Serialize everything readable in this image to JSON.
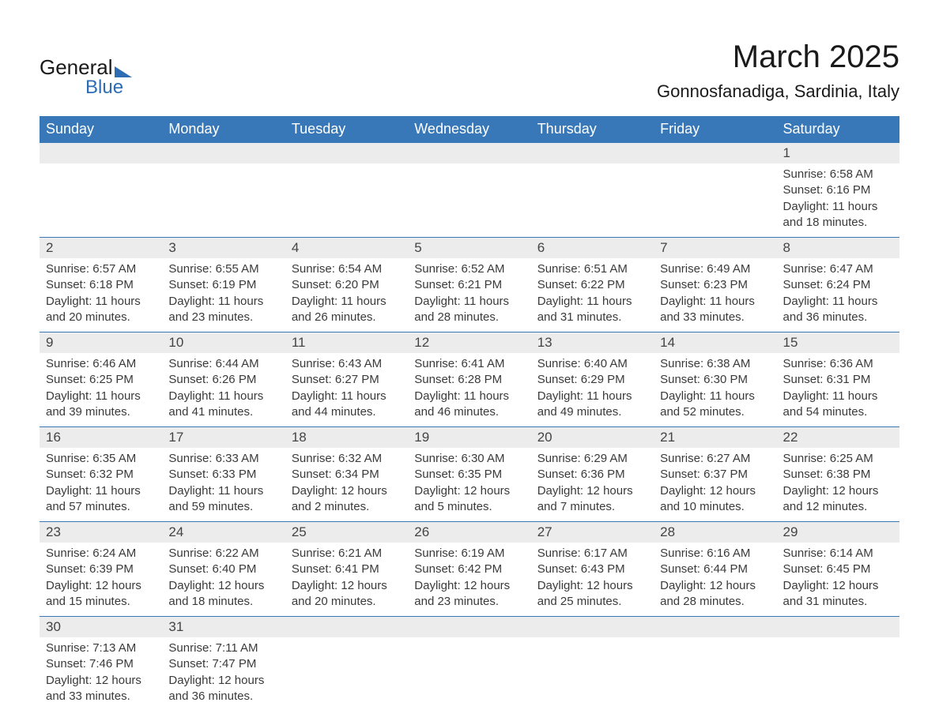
{
  "logo": {
    "general": "General",
    "blue": "Blue"
  },
  "title": "March 2025",
  "location": "Gonnosfanadiga, Sardinia, Italy",
  "dow": [
    "Sunday",
    "Monday",
    "Tuesday",
    "Wednesday",
    "Thursday",
    "Friday",
    "Saturday"
  ],
  "styling": {
    "header_bg": "#3878b8",
    "header_fg": "#ffffff",
    "stripe_bg": "#ececec",
    "border_color": "#3878b8",
    "body_bg": "#ffffff",
    "text_color": "#3a3a3a",
    "title_fontsize": 40,
    "location_fontsize": 22,
    "dow_fontsize": 18,
    "daynum_fontsize": 17,
    "data_fontsize": 15,
    "columns": 7
  },
  "weeks": [
    [
      null,
      null,
      null,
      null,
      null,
      null,
      {
        "n": "1",
        "sr": "Sunrise: 6:58 AM",
        "ss": "Sunset: 6:16 PM",
        "d1": "Daylight: 11 hours",
        "d2": "and 18 minutes."
      }
    ],
    [
      {
        "n": "2",
        "sr": "Sunrise: 6:57 AM",
        "ss": "Sunset: 6:18 PM",
        "d1": "Daylight: 11 hours",
        "d2": "and 20 minutes."
      },
      {
        "n": "3",
        "sr": "Sunrise: 6:55 AM",
        "ss": "Sunset: 6:19 PM",
        "d1": "Daylight: 11 hours",
        "d2": "and 23 minutes."
      },
      {
        "n": "4",
        "sr": "Sunrise: 6:54 AM",
        "ss": "Sunset: 6:20 PM",
        "d1": "Daylight: 11 hours",
        "d2": "and 26 minutes."
      },
      {
        "n": "5",
        "sr": "Sunrise: 6:52 AM",
        "ss": "Sunset: 6:21 PM",
        "d1": "Daylight: 11 hours",
        "d2": "and 28 minutes."
      },
      {
        "n": "6",
        "sr": "Sunrise: 6:51 AM",
        "ss": "Sunset: 6:22 PM",
        "d1": "Daylight: 11 hours",
        "d2": "and 31 minutes."
      },
      {
        "n": "7",
        "sr": "Sunrise: 6:49 AM",
        "ss": "Sunset: 6:23 PM",
        "d1": "Daylight: 11 hours",
        "d2": "and 33 minutes."
      },
      {
        "n": "8",
        "sr": "Sunrise: 6:47 AM",
        "ss": "Sunset: 6:24 PM",
        "d1": "Daylight: 11 hours",
        "d2": "and 36 minutes."
      }
    ],
    [
      {
        "n": "9",
        "sr": "Sunrise: 6:46 AM",
        "ss": "Sunset: 6:25 PM",
        "d1": "Daylight: 11 hours",
        "d2": "and 39 minutes."
      },
      {
        "n": "10",
        "sr": "Sunrise: 6:44 AM",
        "ss": "Sunset: 6:26 PM",
        "d1": "Daylight: 11 hours",
        "d2": "and 41 minutes."
      },
      {
        "n": "11",
        "sr": "Sunrise: 6:43 AM",
        "ss": "Sunset: 6:27 PM",
        "d1": "Daylight: 11 hours",
        "d2": "and 44 minutes."
      },
      {
        "n": "12",
        "sr": "Sunrise: 6:41 AM",
        "ss": "Sunset: 6:28 PM",
        "d1": "Daylight: 11 hours",
        "d2": "and 46 minutes."
      },
      {
        "n": "13",
        "sr": "Sunrise: 6:40 AM",
        "ss": "Sunset: 6:29 PM",
        "d1": "Daylight: 11 hours",
        "d2": "and 49 minutes."
      },
      {
        "n": "14",
        "sr": "Sunrise: 6:38 AM",
        "ss": "Sunset: 6:30 PM",
        "d1": "Daylight: 11 hours",
        "d2": "and 52 minutes."
      },
      {
        "n": "15",
        "sr": "Sunrise: 6:36 AM",
        "ss": "Sunset: 6:31 PM",
        "d1": "Daylight: 11 hours",
        "d2": "and 54 minutes."
      }
    ],
    [
      {
        "n": "16",
        "sr": "Sunrise: 6:35 AM",
        "ss": "Sunset: 6:32 PM",
        "d1": "Daylight: 11 hours",
        "d2": "and 57 minutes."
      },
      {
        "n": "17",
        "sr": "Sunrise: 6:33 AM",
        "ss": "Sunset: 6:33 PM",
        "d1": "Daylight: 11 hours",
        "d2": "and 59 minutes."
      },
      {
        "n": "18",
        "sr": "Sunrise: 6:32 AM",
        "ss": "Sunset: 6:34 PM",
        "d1": "Daylight: 12 hours",
        "d2": "and 2 minutes."
      },
      {
        "n": "19",
        "sr": "Sunrise: 6:30 AM",
        "ss": "Sunset: 6:35 PM",
        "d1": "Daylight: 12 hours",
        "d2": "and 5 minutes."
      },
      {
        "n": "20",
        "sr": "Sunrise: 6:29 AM",
        "ss": "Sunset: 6:36 PM",
        "d1": "Daylight: 12 hours",
        "d2": "and 7 minutes."
      },
      {
        "n": "21",
        "sr": "Sunrise: 6:27 AM",
        "ss": "Sunset: 6:37 PM",
        "d1": "Daylight: 12 hours",
        "d2": "and 10 minutes."
      },
      {
        "n": "22",
        "sr": "Sunrise: 6:25 AM",
        "ss": "Sunset: 6:38 PM",
        "d1": "Daylight: 12 hours",
        "d2": "and 12 minutes."
      }
    ],
    [
      {
        "n": "23",
        "sr": "Sunrise: 6:24 AM",
        "ss": "Sunset: 6:39 PM",
        "d1": "Daylight: 12 hours",
        "d2": "and 15 minutes."
      },
      {
        "n": "24",
        "sr": "Sunrise: 6:22 AM",
        "ss": "Sunset: 6:40 PM",
        "d1": "Daylight: 12 hours",
        "d2": "and 18 minutes."
      },
      {
        "n": "25",
        "sr": "Sunrise: 6:21 AM",
        "ss": "Sunset: 6:41 PM",
        "d1": "Daylight: 12 hours",
        "d2": "and 20 minutes."
      },
      {
        "n": "26",
        "sr": "Sunrise: 6:19 AM",
        "ss": "Sunset: 6:42 PM",
        "d1": "Daylight: 12 hours",
        "d2": "and 23 minutes."
      },
      {
        "n": "27",
        "sr": "Sunrise: 6:17 AM",
        "ss": "Sunset: 6:43 PM",
        "d1": "Daylight: 12 hours",
        "d2": "and 25 minutes."
      },
      {
        "n": "28",
        "sr": "Sunrise: 6:16 AM",
        "ss": "Sunset: 6:44 PM",
        "d1": "Daylight: 12 hours",
        "d2": "and 28 minutes."
      },
      {
        "n": "29",
        "sr": "Sunrise: 6:14 AM",
        "ss": "Sunset: 6:45 PM",
        "d1": "Daylight: 12 hours",
        "d2": "and 31 minutes."
      }
    ],
    [
      {
        "n": "30",
        "sr": "Sunrise: 7:13 AM",
        "ss": "Sunset: 7:46 PM",
        "d1": "Daylight: 12 hours",
        "d2": "and 33 minutes."
      },
      {
        "n": "31",
        "sr": "Sunrise: 7:11 AM",
        "ss": "Sunset: 7:47 PM",
        "d1": "Daylight: 12 hours",
        "d2": "and 36 minutes."
      },
      null,
      null,
      null,
      null,
      null
    ]
  ]
}
